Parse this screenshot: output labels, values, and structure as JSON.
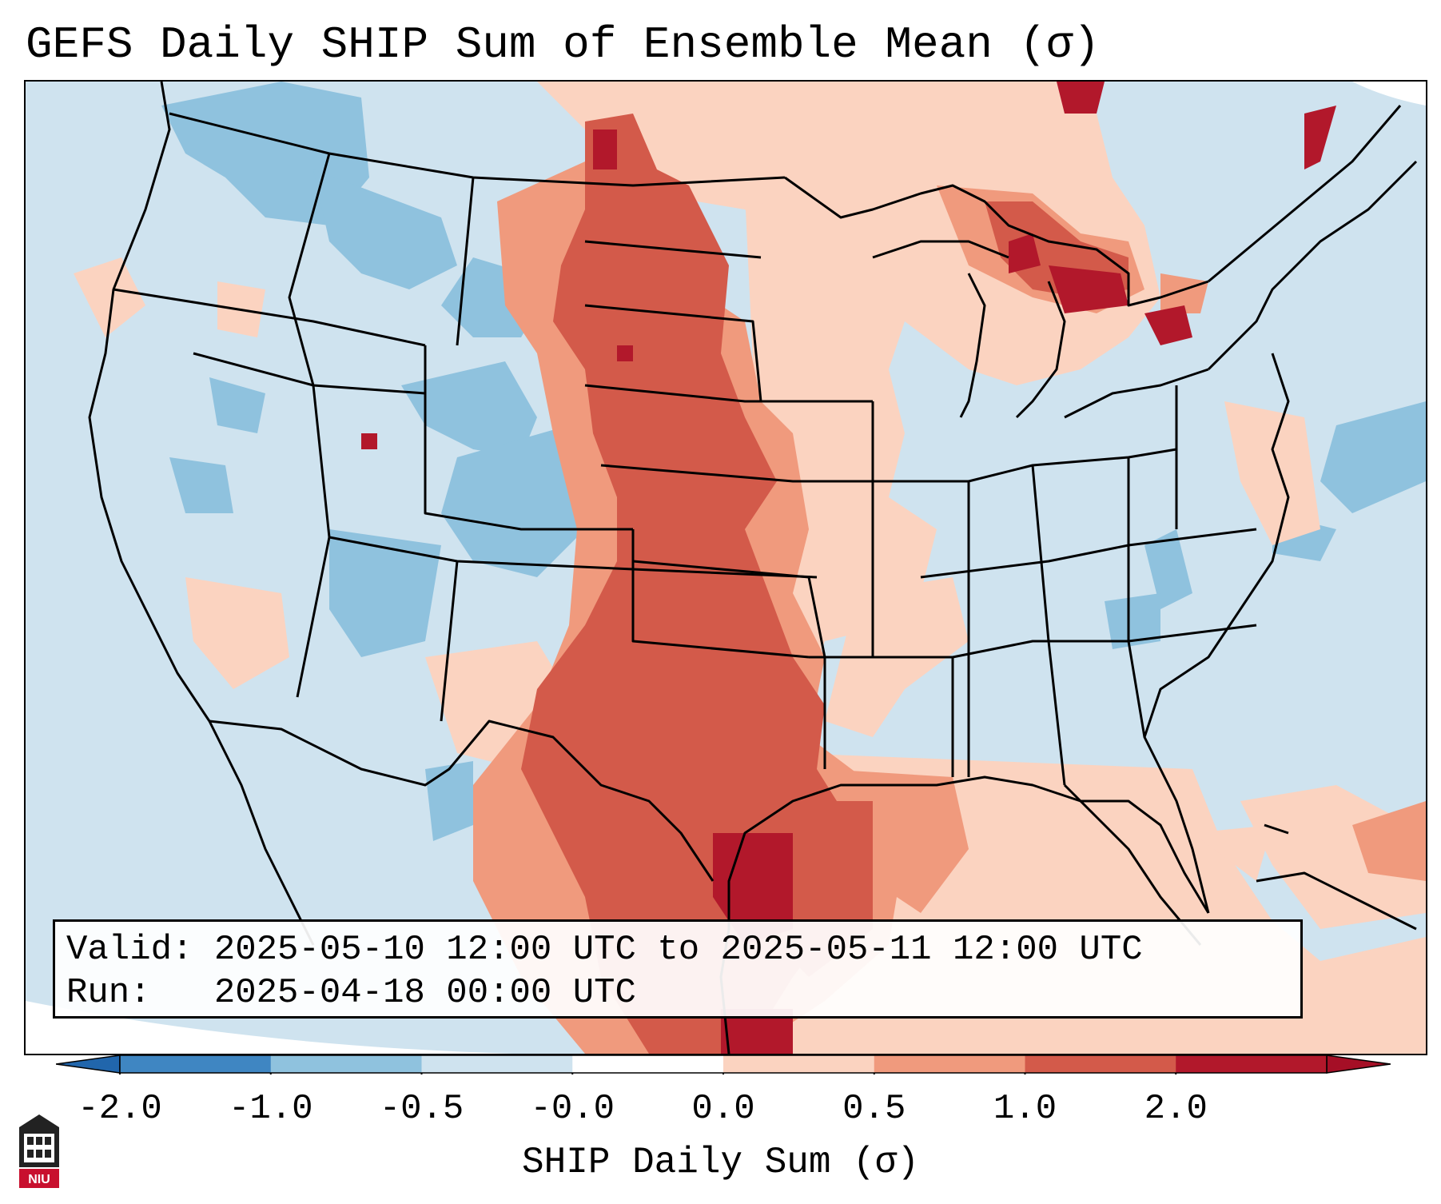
{
  "title": "GEFS Daily SHIP Sum of Ensemble Mean (σ)",
  "info": {
    "valid_label": "Valid:",
    "valid_value": "2025-05-10 12:00 UTC to 2025-05-11 12:00 UTC",
    "run_label": "Run:",
    "run_value": "2025-04-18 00:00 UTC"
  },
  "colorbar": {
    "label": "SHIP Daily Sum (σ)",
    "ticks": [
      "-2.0",
      "-1.0",
      "-0.5",
      "-0.0",
      "0.0",
      "0.5",
      "1.0",
      "2.0"
    ],
    "bin_colors": [
      "#3f86c2",
      "#8fc2de",
      "#cfe3ef",
      "#ffffff",
      "#fbd3c0",
      "#f09a7d",
      "#d35a4a",
      "#b2182b"
    ],
    "extend_low_color": "#2166ac",
    "extend_high_color": "#a50f26"
  },
  "map": {
    "region": "CONUS",
    "ocean_color": "#cfe3ef",
    "border_color": "#000000"
  },
  "logo": {
    "text": "NIU"
  }
}
